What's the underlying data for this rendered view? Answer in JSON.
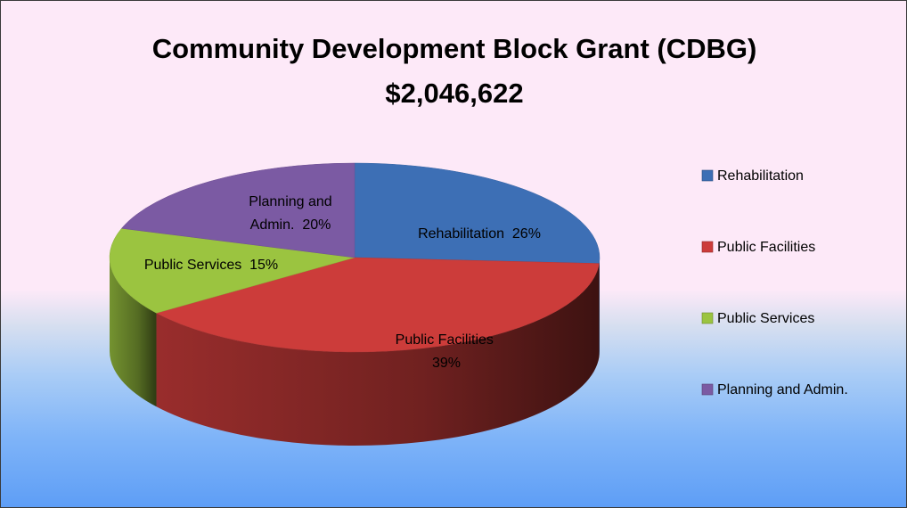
{
  "chart_data": {
    "type": "pie",
    "title": "Community Development Block Grant (CDBG)",
    "subtitle": "$2,046,622",
    "categories": [
      "Rehabilitation",
      "Public Facilities",
      "Public Services",
      "Planning and Admin."
    ],
    "values": [
      26,
      39,
      15,
      20
    ],
    "value_labels": [
      "26%",
      "39%",
      "15%",
      "20%"
    ],
    "colors": [
      "#3d6fb5",
      "#cc3c3a",
      "#9bc440",
      "#7b5aa3"
    ],
    "legend": "right"
  }
}
